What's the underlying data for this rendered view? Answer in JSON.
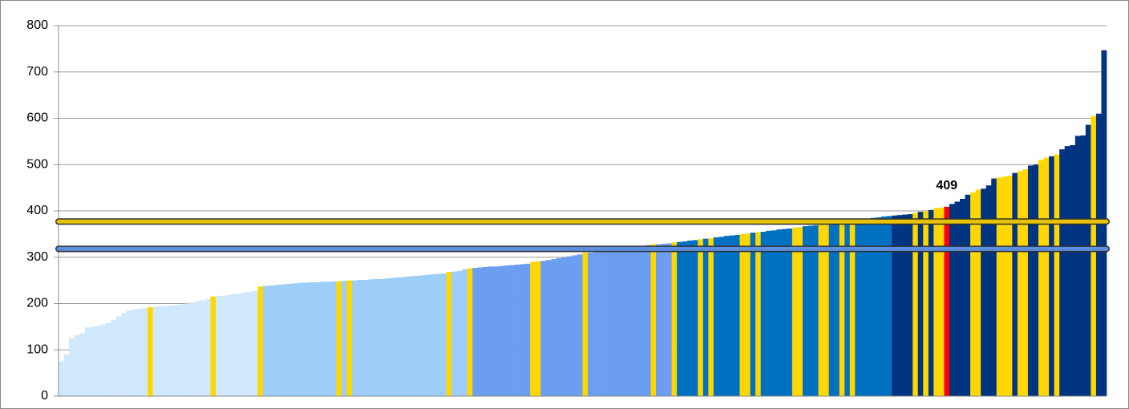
{
  "chart_data": {
    "type": "bar",
    "values": [
      75,
      90,
      125,
      132,
      135,
      148,
      150,
      152,
      155,
      158,
      165,
      172,
      180,
      185,
      187,
      189,
      190,
      192,
      193,
      194,
      195,
      196,
      197,
      198,
      200,
      202,
      205,
      207,
      210,
      215,
      216,
      217,
      219,
      221,
      222,
      224,
      225,
      227,
      237,
      238,
      239,
      240,
      241,
      242,
      243,
      244,
      245,
      245,
      246,
      246,
      247,
      247,
      248,
      248,
      249,
      250,
      250,
      251,
      251,
      252,
      253,
      253,
      254,
      255,
      256,
      257,
      258,
      259,
      260,
      261,
      262,
      263,
      264,
      265,
      268,
      269,
      270,
      274,
      276,
      277,
      278,
      279,
      280,
      280,
      281,
      282,
      283,
      284,
      285,
      286,
      290,
      291,
      292,
      294,
      296,
      298,
      300,
      302,
      304,
      306,
      310,
      310,
      311,
      312,
      313,
      314,
      315,
      317,
      318,
      320,
      322,
      324,
      326,
      328,
      328,
      329,
      330,
      332,
      333,
      334,
      336,
      337,
      339,
      340,
      341,
      343,
      344,
      346,
      347,
      348,
      350,
      351,
      353,
      354,
      355,
      357,
      358,
      360,
      361,
      362,
      364,
      365,
      367,
      368,
      369,
      371,
      372,
      374,
      375,
      376,
      378,
      379,
      381,
      382,
      383,
      385,
      386,
      388,
      389,
      390,
      391,
      392,
      393,
      396,
      398,
      400,
      402,
      406,
      407,
      409,
      415,
      420,
      426,
      435,
      440,
      446,
      448,
      455,
      470,
      472,
      474,
      476,
      482,
      486,
      490,
      498,
      500,
      510,
      515,
      518,
      522,
      533,
      540,
      542,
      562,
      563,
      586,
      605,
      610,
      747
    ],
    "colors": [
      "#cfe8fb",
      "#cfe8fb",
      "#cfe8fb",
      "#cfe8fb",
      "#cfe8fb",
      "#cfe8fb",
      "#cfe8fb",
      "#cfe8fb",
      "#cfe8fb",
      "#cfe8fb",
      "#cfe8fb",
      "#cfe8fb",
      "#cfe8fb",
      "#cfe8fb",
      "#cfe8fb",
      "#cfe8fb",
      "#cfe8fb",
      "#ffd700",
      "#cfe8fb",
      "#cfe8fb",
      "#cfe8fb",
      "#cfe8fb",
      "#cfe8fb",
      "#cfe8fb",
      "#cfe8fb",
      "#cfe8fb",
      "#cfe8fb",
      "#cfe8fb",
      "#cfe8fb",
      "#ffd700",
      "#cfe8fb",
      "#cfe8fb",
      "#cfe8fb",
      "#cfe8fb",
      "#cfe8fb",
      "#cfe8fb",
      "#cfe8fb",
      "#cfe8fb",
      "#ffd700",
      "#9dcdf9",
      "#9dcdf9",
      "#9dcdf9",
      "#9dcdf9",
      "#9dcdf9",
      "#9dcdf9",
      "#9dcdf9",
      "#9dcdf9",
      "#9dcdf9",
      "#9dcdf9",
      "#9dcdf9",
      "#9dcdf9",
      "#9dcdf9",
      "#9dcdf9",
      "#ffd700",
      "#9dcdf9",
      "#ffd700",
      "#9dcdf9",
      "#9dcdf9",
      "#9dcdf9",
      "#9dcdf9",
      "#9dcdf9",
      "#9dcdf9",
      "#9dcdf9",
      "#9dcdf9",
      "#9dcdf9",
      "#9dcdf9",
      "#9dcdf9",
      "#9dcdf9",
      "#9dcdf9",
      "#9dcdf9",
      "#9dcdf9",
      "#9dcdf9",
      "#9dcdf9",
      "#9dcdf9",
      "#ffd700",
      "#9dcdf9",
      "#9dcdf9",
      "#9dcdf9",
      "#ffd700",
      "#6b9ef0",
      "#6b9ef0",
      "#6b9ef0",
      "#6b9ef0",
      "#6b9ef0",
      "#6b9ef0",
      "#6b9ef0",
      "#6b9ef0",
      "#6b9ef0",
      "#6b9ef0",
      "#6b9ef0",
      "#ffd700",
      "#ffd700",
      "#6b9ef0",
      "#6b9ef0",
      "#6b9ef0",
      "#6b9ef0",
      "#6b9ef0",
      "#6b9ef0",
      "#6b9ef0",
      "#6b9ef0",
      "#ffd700",
      "#6b9ef0",
      "#6b9ef0",
      "#6b9ef0",
      "#6b9ef0",
      "#6b9ef0",
      "#6b9ef0",
      "#6b9ef0",
      "#6b9ef0",
      "#6b9ef0",
      "#6b9ef0",
      "#6b9ef0",
      "#6b9ef0",
      "#ffd700",
      "#6b9ef0",
      "#6b9ef0",
      "#6b9ef0",
      "#ffd700",
      "#0070c0",
      "#0070c0",
      "#0070c0",
      "#0070c0",
      "#ffd700",
      "#0070c0",
      "#ffd700",
      "#0070c0",
      "#0070c0",
      "#0070c0",
      "#0070c0",
      "#0070c0",
      "#ffd700",
      "#ffd700",
      "#0070c0",
      "#ffd700",
      "#0070c0",
      "#0070c0",
      "#0070c0",
      "#0070c0",
      "#0070c0",
      "#0070c0",
      "#ffd700",
      "#ffd700",
      "#0070c0",
      "#0070c0",
      "#0070c0",
      "#ffd700",
      "#ffd700",
      "#0070c0",
      "#0070c0",
      "#ffd700",
      "#0070c0",
      "#ffd700",
      "#0070c0",
      "#0070c0",
      "#0070c0",
      "#0070c0",
      "#0070c0",
      "#0070c0",
      "#0070c0",
      "#003380",
      "#003380",
      "#003380",
      "#003380",
      "#ffd700",
      "#003380",
      "#ffd700",
      "#003380",
      "#ffd700",
      "#ffd700",
      "#ff0000",
      "#003380",
      "#003380",
      "#003380",
      "#003380",
      "#ffd700",
      "#ffd700",
      "#003380",
      "#003380",
      "#003380",
      "#ffd700",
      "#ffd700",
      "#ffd700",
      "#003380",
      "#ffd700",
      "#ffd700",
      "#003380",
      "#003380",
      "#ffd700",
      "#ffd700",
      "#003380",
      "#ffd700",
      "#003380",
      "#003380",
      "#003380",
      "#003380",
      "#003380",
      "#003380",
      "#ffd700",
      "#003380",
      "#003380"
    ],
    "annotations": [
      {
        "text": "409",
        "index": 169
      }
    ],
    "reference_lines": [
      {
        "value": 377,
        "color": "#e6c200"
      },
      {
        "value": 318,
        "color": "#5b8fe0"
      }
    ],
    "ylim": [
      0,
      800
    ],
    "yticks": [
      0,
      100,
      200,
      300,
      400,
      500,
      600,
      700,
      800
    ],
    "grid": true
  }
}
